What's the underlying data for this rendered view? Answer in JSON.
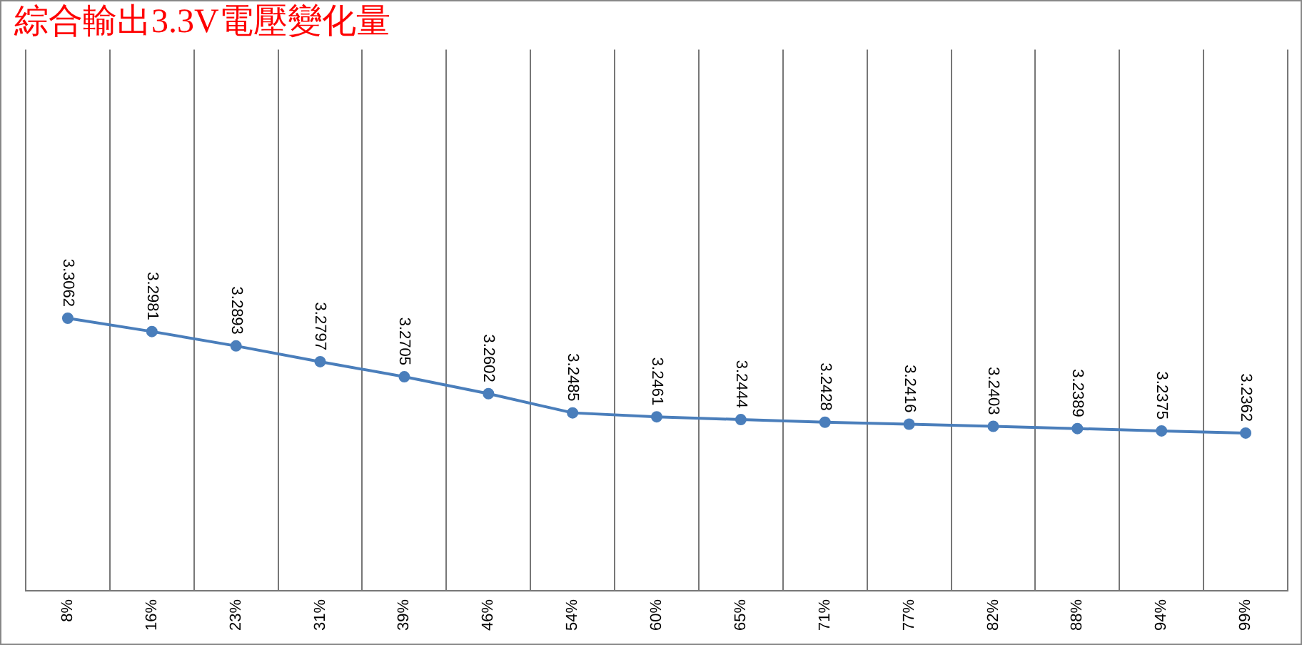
{
  "chart_data": {
    "type": "line",
    "title": "綜合輸出3.3V電壓變化量",
    "categories": [
      "8%",
      "16%",
      "23%",
      "31%",
      "39%",
      "46%",
      "54%",
      "60%",
      "65%",
      "71%",
      "77%",
      "82%",
      "88%",
      "94%",
      "99%"
    ],
    "series": [
      {
        "color": "#4a7ebb",
        "values": [
          3.3062,
          3.2981,
          3.2893,
          3.2797,
          3.2705,
          3.2602,
          3.2485,
          3.2461,
          3.2444,
          3.2428,
          3.2416,
          3.2403,
          3.2389,
          3.2375,
          3.2362
        ]
      }
    ],
    "ylim": [
      3.14,
      3.47
    ],
    "grid": "x",
    "tick_labels": "x",
    "data_labels": true,
    "marker": "circle",
    "line_style": "solid",
    "legend": false
  }
}
